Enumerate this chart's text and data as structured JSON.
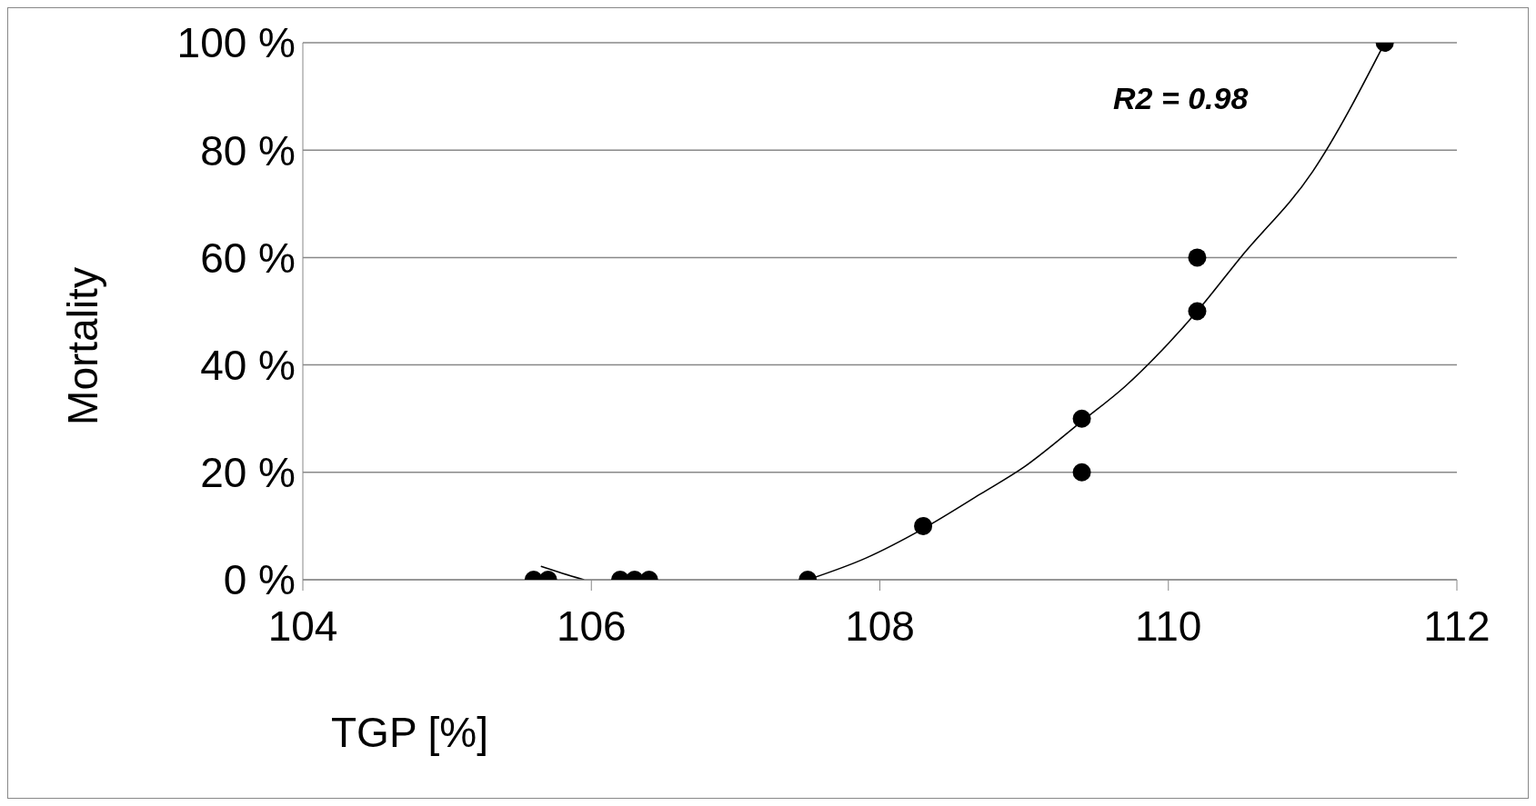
{
  "chart_data": {
    "type": "scatter",
    "xlabel": "TGP [%]",
    "ylabel": "Mortality",
    "annotations": [
      "R2 = 0.98"
    ],
    "x": [
      105.6,
      105.7,
      106.2,
      106.3,
      106.4,
      107.5,
      108.3,
      109.4,
      109.4,
      110.2,
      110.2,
      111.5
    ],
    "series": [
      {
        "color": "#000000",
        "marker": "circle",
        "values": [
          0,
          0,
          0,
          0,
          0,
          0,
          10,
          30,
          20,
          60,
          50,
          100
        ]
      },
      {
        "type": "line",
        "color": "#000000",
        "line_style": "solid",
        "x": [
          105.65,
          105.8,
          105.95,
          106.0,
          107.5,
          107.9,
          108.3,
          108.7,
          109.0,
          109.4,
          109.7,
          110.0,
          110.2,
          110.5,
          111.0,
          111.5
        ],
        "values": [
          2.5,
          1.2,
          0,
          null,
          0,
          4,
          9.5,
          16,
          21,
          29.5,
          36,
          44,
          50,
          60,
          76,
          100
        ]
      }
    ],
    "xlim": [
      104,
      112
    ],
    "xticks": [
      104,
      106,
      108,
      110,
      112
    ],
    "ylim": [
      0,
      100
    ],
    "yticks": [
      {
        "value": 0,
        "label": "0 %"
      },
      {
        "value": 20,
        "label": "20 %"
      },
      {
        "value": 40,
        "label": "40 %"
      },
      {
        "value": 60,
        "label": "60 %"
      },
      {
        "value": 80,
        "label": "80 %"
      },
      {
        "value": 100,
        "label": "100 %"
      }
    ],
    "grid": "y"
  }
}
